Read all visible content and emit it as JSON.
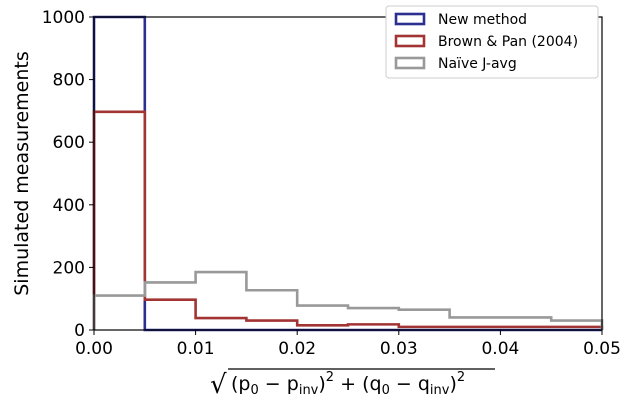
{
  "chart_data": {
    "type": "histogram",
    "title": "",
    "xlabel": "√((p₀ − p_inv)² + (q₀ − q_inv)²)",
    "xlabel_parts": {
      "sqrt": "√",
      "open1": "(p",
      "sub0a": "0",
      "minus1": " − p",
      "subInv1": "inv",
      "close1": ")",
      "sq1": "2",
      "plus": " + (q",
      "sub0b": "0",
      "minus2": " − q",
      "subInv2": "inv",
      "close2": ")",
      "sq2": "2"
    },
    "ylabel": "Simulated measurements",
    "xlim": [
      0,
      0.05
    ],
    "ylim": [
      0,
      1000
    ],
    "xticks": [
      0.0,
      0.01,
      0.02,
      0.03,
      0.04,
      0.05
    ],
    "xtick_labels": [
      "0.00",
      "0.01",
      "0.02",
      "0.03",
      "0.04",
      "0.05"
    ],
    "yticks": [
      0,
      200,
      400,
      600,
      800,
      1000
    ],
    "ytick_labels": [
      "0",
      "200",
      "400",
      "600",
      "800",
      "1000"
    ],
    "bin_edges": [
      0.0,
      0.005,
      0.01,
      0.015,
      0.02,
      0.025,
      0.03,
      0.035,
      0.04,
      0.045,
      0.05
    ],
    "legend_position": "top-right",
    "series": [
      {
        "name": "New method",
        "color": "#2b2f8f",
        "values": [
          1000,
          0,
          0,
          0,
          0,
          0,
          0,
          0,
          0,
          0
        ]
      },
      {
        "name": "Brown & Pan (2004)",
        "color": "#a23434",
        "values": [
          697,
          97,
          38,
          30,
          15,
          18,
          10,
          10,
          10,
          10
        ]
      },
      {
        "name": "Naïve J-avg",
        "color": "#999999",
        "values": [
          110,
          152,
          185,
          127,
          78,
          70,
          65,
          40,
          40,
          30
        ]
      }
    ]
  }
}
